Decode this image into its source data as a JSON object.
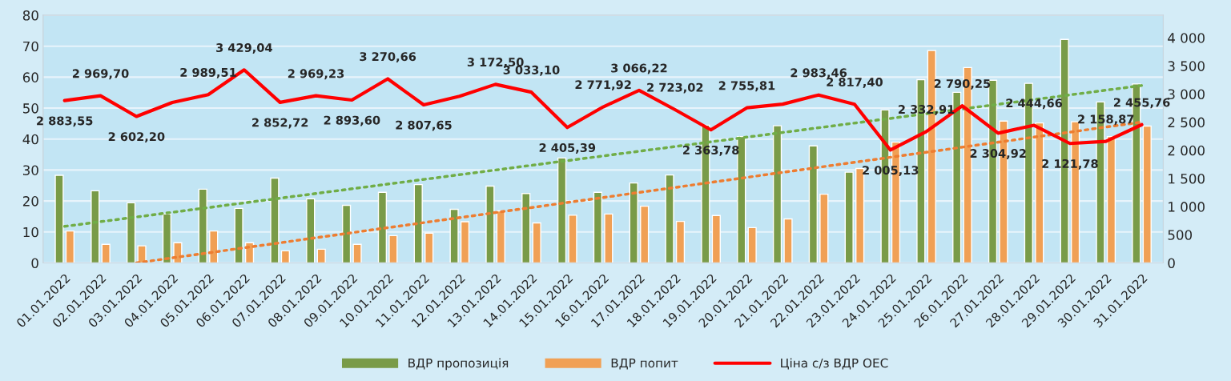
{
  "chart_data": {
    "type": "bar",
    "categories": [
      "01.01.2022",
      "02.01.2022",
      "03.01.2022",
      "04.01.2022",
      "05.01.2022",
      "06.01.2022",
      "07.01.2022",
      "08.01.2022",
      "09.01.2022",
      "10.01.2022",
      "11.01.2022",
      "12.01.2022",
      "13.01.2022",
      "14.01.2022",
      "15.01.2022",
      "16.01.2022",
      "17.01.2022",
      "18.01.2022",
      "19.01.2022",
      "20.01.2022",
      "21.01.2022",
      "22.01.2022",
      "23.01.2022",
      "24.01.2022",
      "25.01.2022",
      "26.01.2022",
      "27.01.2022",
      "28.01.2022",
      "29.01.2022",
      "30.01.2022",
      "31.01.2022"
    ],
    "series": [
      {
        "name": "ВДР пропозиція",
        "color": "#799b48",
        "values": [
          28.3,
          23.3,
          19.4,
          15.8,
          23.8,
          17.6,
          27.4,
          20.7,
          18.6,
          22.8,
          25.3,
          17.3,
          24.8,
          22.4,
          33.9,
          22.8,
          25.8,
          28.4,
          44.5,
          40.8,
          44.3,
          37.8,
          29.3,
          49.4,
          59.2,
          55.1,
          59.0,
          58.0,
          72.2,
          52.0,
          57.8
        ]
      },
      {
        "name": "ВДР попит",
        "color": "#f0a055",
        "values": [
          10.3,
          6.0,
          5.5,
          6.5,
          10.3,
          6.5,
          3.9,
          4.4,
          6.0,
          8.8,
          9.6,
          13.3,
          16.8,
          12.9,
          15.4,
          15.8,
          18.3,
          13.4,
          15.3,
          11.4,
          14.2,
          22.2,
          30.5,
          39.0,
          68.6,
          63.1,
          45.8,
          45.2,
          45.6,
          40.8,
          44.2
        ]
      },
      {
        "name": "Ціна с/з ВДР ОЕС",
        "type": "line",
        "axis": "y2",
        "color": "#ff0000",
        "line_style": "solid",
        "values": [
          2883.55,
          2969.7,
          2602.2,
          2850,
          2989.51,
          3429.04,
          2852.72,
          2969.23,
          2893.6,
          3270.66,
          2807.65,
          2960,
          3172.5,
          3033.1,
          2405.39,
          2771.92,
          3066.22,
          2723.02,
          2363.78,
          2755.81,
          2820,
          2983.46,
          2817.4,
          2005.13,
          2332.91,
          2790.25,
          2304.92,
          2444.66,
          2121.78,
          2158.87,
          2455.76
        ],
        "value_labels": [
          "2 883,55",
          "2 969,70",
          "2 602,20",
          null,
          "2 989,51",
          "3 429,04",
          "2 852,72",
          "2 969,23",
          "2 893,60",
          "3 270,66",
          "2 807,65",
          null,
          "3 172,50",
          "3 033,10",
          "2 405,39",
          "2 771,92",
          "3 066,22",
          "2 723,02",
          "2 363,78",
          "2 755,81",
          null,
          "2 983,46",
          "2 817,40",
          "2 005,13",
          "2 332,91",
          "2 790,25",
          "2 304,92",
          "2 444,66",
          "2 121,78",
          "2 158,87",
          "2 455,76"
        ]
      },
      {
        "type": "line",
        "color": "#70ad47",
        "line_style": "dotted",
        "x": [
          "01.01.2022",
          "31.01.2022"
        ],
        "values": [
          11.8,
          57.3
        ]
      },
      {
        "type": "line",
        "color": "#ed7d31",
        "line_style": "dotted",
        "x": [
          "03.01.2022",
          "31.01.2022"
        ],
        "values": [
          0,
          45.5
        ]
      }
    ],
    "ylim": [
      0,
      80
    ],
    "yticks": [
      0,
      10,
      20,
      30,
      40,
      50,
      60,
      70,
      80
    ],
    "y2lim": [
      0,
      4400
    ],
    "y2ticks": [
      {
        "value": 0,
        "label": "0"
      },
      {
        "value": 500,
        "label": "500"
      },
      {
        "value": 1000,
        "label": "1 000"
      },
      {
        "value": 1500,
        "label": "1 500"
      },
      {
        "value": 2000,
        "label": "2 000"
      },
      {
        "value": 2500,
        "label": "2 500"
      },
      {
        "value": 3000,
        "label": "3 000"
      },
      {
        "value": 3500,
        "label": "3 500"
      },
      {
        "value": 4000,
        "label": "4 000"
      }
    ],
    "grid": "y",
    "legend": "bottom"
  }
}
